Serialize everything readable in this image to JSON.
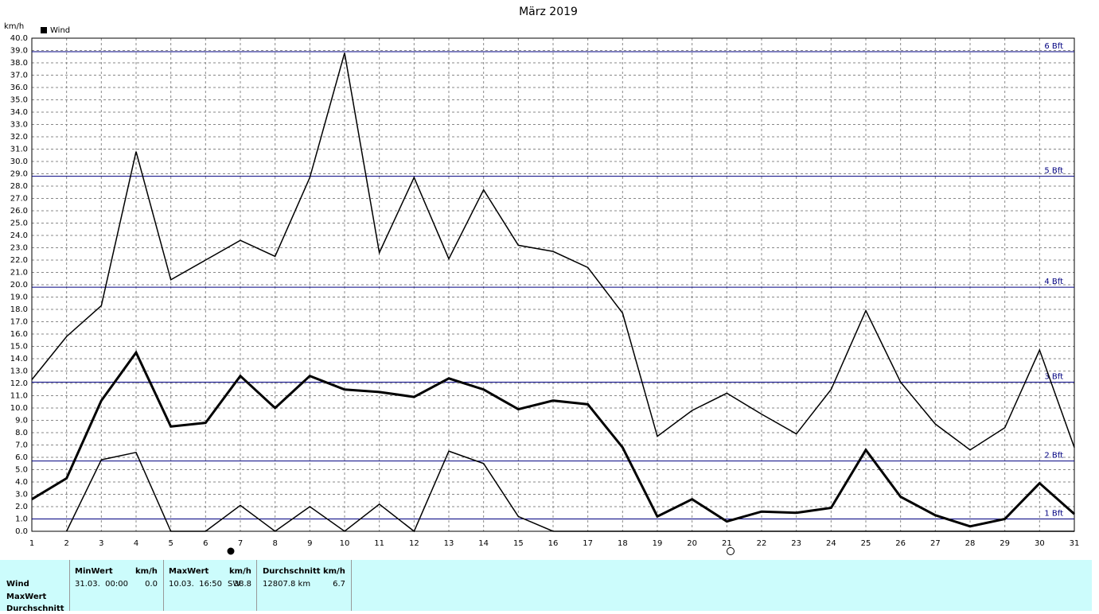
{
  "chart_data": {
    "type": "line",
    "title": "März 2019",
    "y_unit": "km/h",
    "x": [
      1,
      2,
      3,
      4,
      5,
      6,
      7,
      8,
      9,
      10,
      11,
      12,
      13,
      14,
      15,
      16,
      17,
      18,
      19,
      20,
      21,
      22,
      23,
      24,
      25,
      26,
      27,
      28,
      29,
      30,
      31
    ],
    "xlim": [
      1,
      31
    ],
    "xticks": [
      1,
      2,
      3,
      4,
      5,
      6,
      7,
      8,
      9,
      10,
      11,
      12,
      13,
      14,
      15,
      16,
      17,
      18,
      19,
      20,
      21,
      22,
      23,
      24,
      25,
      26,
      27,
      28,
      29,
      30,
      31
    ],
    "ylim": [
      0,
      40
    ],
    "yticks": [
      {
        "value": 0,
        "label": "0.0"
      },
      {
        "value": 1,
        "label": "1.0"
      },
      {
        "value": 2,
        "label": "2.0"
      },
      {
        "value": 3,
        "label": "3.0"
      },
      {
        "value": 4,
        "label": "4.0"
      },
      {
        "value": 5,
        "label": "5.0"
      },
      {
        "value": 6,
        "label": "6.0"
      },
      {
        "value": 7,
        "label": "7.0"
      },
      {
        "value": 8,
        "label": "8.0"
      },
      {
        "value": 9,
        "label": "9.0"
      },
      {
        "value": 10,
        "label": "10.0"
      },
      {
        "value": 11,
        "label": "11.0"
      },
      {
        "value": 12,
        "label": "12.0"
      },
      {
        "value": 13,
        "label": "13.0"
      },
      {
        "value": 14,
        "label": "14.0"
      },
      {
        "value": 15,
        "label": "15.0"
      },
      {
        "value": 16,
        "label": "16.0"
      },
      {
        "value": 17,
        "label": "17.0"
      },
      {
        "value": 18,
        "label": "18.0"
      },
      {
        "value": 19,
        "label": "19.0"
      },
      {
        "value": 20,
        "label": "20.0"
      },
      {
        "value": 21,
        "label": "21.0"
      },
      {
        "value": 22,
        "label": "22.0"
      },
      {
        "value": 23,
        "label": "23.0"
      },
      {
        "value": 24,
        "label": "24.0"
      },
      {
        "value": 25,
        "label": "25.0"
      },
      {
        "value": 26,
        "label": "26.0"
      },
      {
        "value": 27,
        "label": "27.0"
      },
      {
        "value": 28,
        "label": "28.0"
      },
      {
        "value": 29,
        "label": "29.0"
      },
      {
        "value": 30,
        "label": "30.0"
      },
      {
        "value": 31,
        "label": "31.0"
      },
      {
        "value": 32,
        "label": "32.0"
      },
      {
        "value": 33,
        "label": "33.0"
      },
      {
        "value": 34,
        "label": "34.0"
      },
      {
        "value": 35,
        "label": "35.0"
      },
      {
        "value": 36,
        "label": "36.0"
      },
      {
        "value": 37,
        "label": "37.0"
      },
      {
        "value": 38,
        "label": "38.0"
      },
      {
        "value": 39,
        "label": "39.0"
      },
      {
        "value": 40,
        "label": "40.0"
      }
    ],
    "grid": true,
    "series": [
      {
        "name": "Wind",
        "color": "#000000",
        "values": [
          2.6,
          4.3,
          10.6,
          14.5,
          8.5,
          8.8,
          12.6,
          10.0,
          12.6,
          11.5,
          11.3,
          10.9,
          12.4,
          11.5,
          9.9,
          10.6,
          10.3,
          6.8,
          1.2,
          2.6,
          0.8,
          1.6,
          1.5,
          1.9,
          6.6,
          2.8,
          1.3,
          0.4,
          1.0,
          3.9,
          1.4
        ],
        "max_values": [
          12.3,
          15.8,
          18.3,
          30.8,
          20.4,
          22.0,
          23.6,
          22.3,
          28.7,
          38.8,
          22.6,
          28.7,
          22.1,
          27.7,
          23.2,
          22.7,
          21.4,
          17.7,
          7.7,
          9.8,
          11.2,
          9.5,
          7.9,
          11.5,
          17.9,
          12.1,
          8.7,
          6.6,
          8.4,
          14.7,
          6.8
        ],
        "min_values": [
          null,
          0,
          5.8,
          6.4,
          0,
          0,
          2.1,
          0,
          2.0,
          0,
          2.2,
          0,
          6.5,
          5.5,
          1.2,
          0,
          0,
          0,
          0,
          0,
          0,
          0,
          0,
          0,
          0,
          0,
          0,
          0,
          0,
          0,
          0
        ]
      }
    ],
    "reference_lines": [
      {
        "value": 1.0,
        "label": "1 Bft"
      },
      {
        "value": 5.7,
        "label": "2 Bft"
      },
      {
        "value": 12.1,
        "label": "3 Bft"
      },
      {
        "value": 19.8,
        "label": "4 Bft"
      },
      {
        "value": 28.8,
        "label": "5 Bft"
      },
      {
        "value": 38.9,
        "label": "6 Bft"
      }
    ],
    "reference_color": "#000080"
  },
  "table": {
    "row_labels": [
      "Wind",
      "MaxWert",
      "Durchschnitt"
    ],
    "headers": [
      [
        "MinWert",
        "km/h"
      ],
      [
        "MaxWert",
        "km/h"
      ],
      [
        "Durchschnitt km/h"
      ]
    ],
    "cells": [
      [
        "31.03.  00:00",
        "0.0"
      ],
      [
        "10.03.  16:50",
        "SW",
        "38.8"
      ],
      [
        "12807.8 km",
        "6.7"
      ]
    ]
  }
}
